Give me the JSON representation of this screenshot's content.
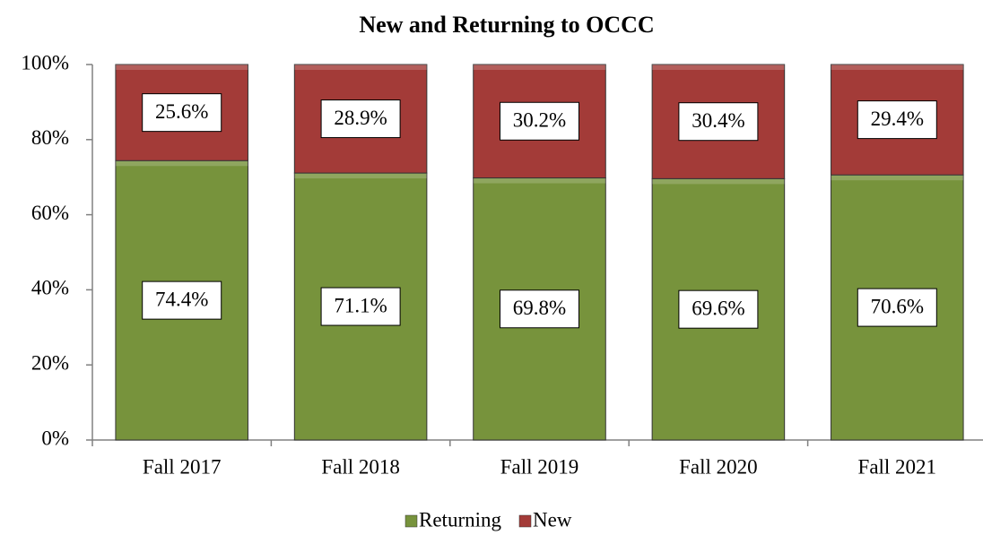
{
  "chart_data": {
    "type": "bar",
    "stacked": true,
    "title": "New and Returning to OCCC",
    "categories": [
      "Fall 2017",
      "Fall 2018",
      "Fall 2019",
      "Fall 2020",
      "Fall 2021"
    ],
    "series": [
      {
        "name": "Returning",
        "color": "#77933c",
        "values": [
          74.4,
          71.1,
          69.8,
          69.6,
          70.6
        ],
        "value_labels": [
          "74.4%",
          "71.1%",
          "69.8%",
          "69.6%",
          "70.6%"
        ]
      },
      {
        "name": "New",
        "color": "#a33b38",
        "values": [
          25.6,
          28.9,
          30.2,
          30.4,
          29.4
        ],
        "value_labels": [
          "25.6%",
          "28.9%",
          "30.2%",
          "30.4%",
          "29.4%"
        ]
      }
    ],
    "ylim": [
      0,
      100
    ],
    "yticks": [
      {
        "value": 0,
        "label": "0%"
      },
      {
        "value": 20,
        "label": "20%"
      },
      {
        "value": 40,
        "label": "40%"
      },
      {
        "value": 60,
        "label": "60%"
      },
      {
        "value": 80,
        "label": "80%"
      },
      {
        "value": 100,
        "label": "100%"
      }
    ],
    "grid": false,
    "legend": "bottom"
  }
}
